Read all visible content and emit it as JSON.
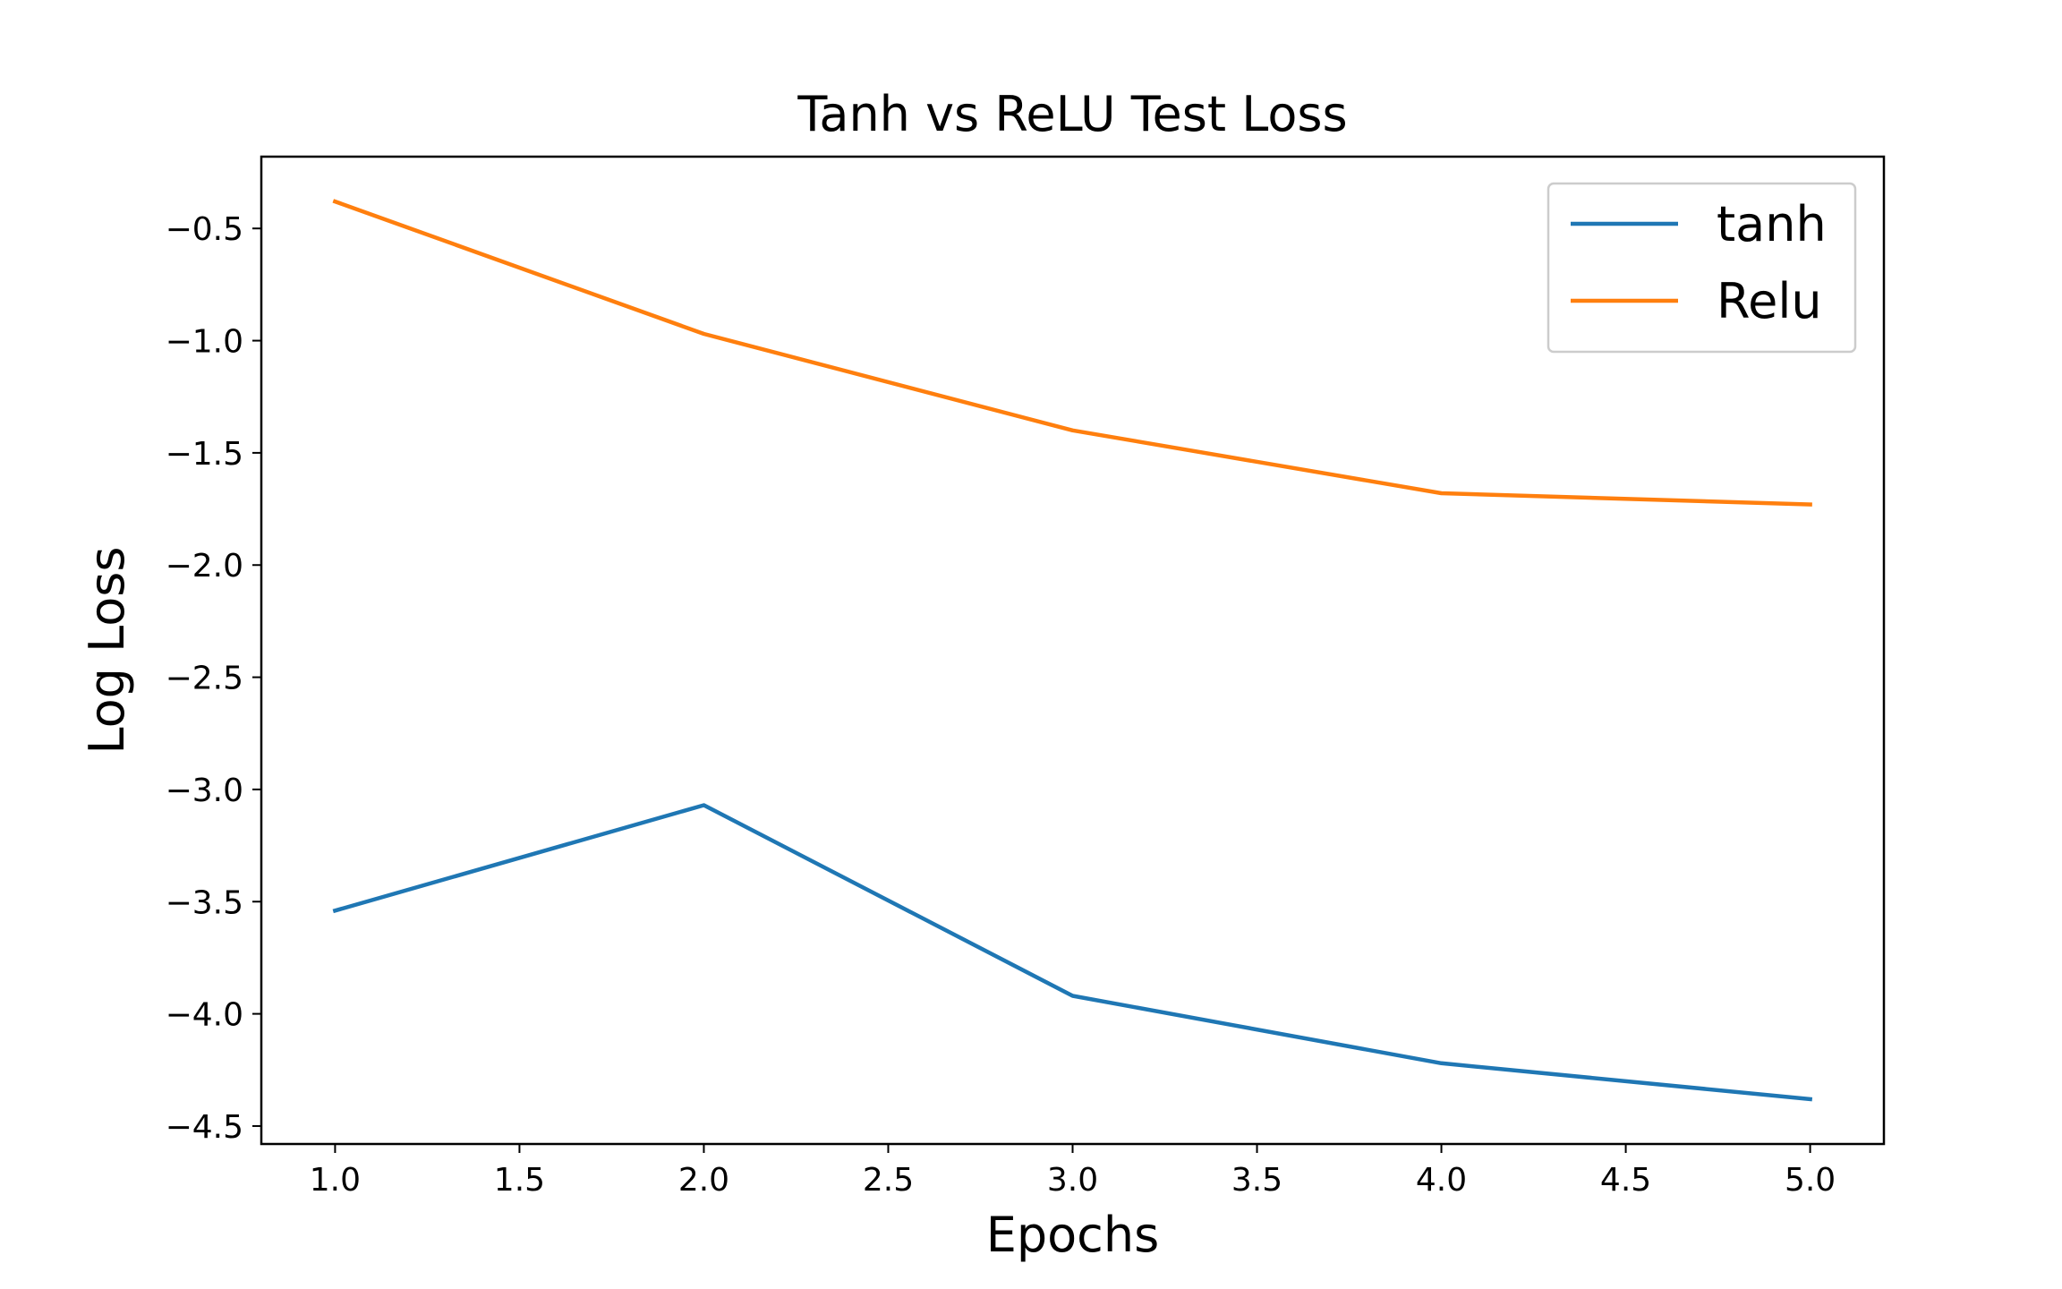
{
  "chart_data": {
    "type": "line",
    "title": "Tanh vs ReLU Test Loss",
    "xlabel": "Epochs",
    "ylabel": "Log Loss",
    "xlim": [
      0.8,
      5.2
    ],
    "ylim": [
      -4.58,
      -0.18
    ],
    "x_ticks": [
      1.0,
      1.5,
      2.0,
      2.5,
      3.0,
      3.5,
      4.0,
      4.5,
      5.0
    ],
    "x_tick_labels": [
      "1.0",
      "1.5",
      "2.0",
      "2.5",
      "3.0",
      "3.5",
      "4.0",
      "4.5",
      "5.0"
    ],
    "y_ticks": [
      -0.5,
      -1.0,
      -1.5,
      -2.0,
      -2.5,
      -3.0,
      -3.5,
      -4.0,
      -4.5
    ],
    "y_tick_labels": [
      "−0.5",
      "−1.0",
      "−1.5",
      "−2.0",
      "−2.5",
      "−3.0",
      "−3.5",
      "−4.0",
      "−4.5"
    ],
    "grid": false,
    "legend_position": "top-right",
    "x": [
      1,
      2,
      3,
      4,
      5
    ],
    "series": [
      {
        "name": "tanh",
        "color": "#1f77b4",
        "values": [
          -3.54,
          -3.07,
          -3.92,
          -4.22,
          -4.38
        ]
      },
      {
        "name": "Relu",
        "color": "#ff7f0e",
        "values": [
          -0.38,
          -0.97,
          -1.4,
          -1.68,
          -1.73
        ]
      }
    ]
  }
}
